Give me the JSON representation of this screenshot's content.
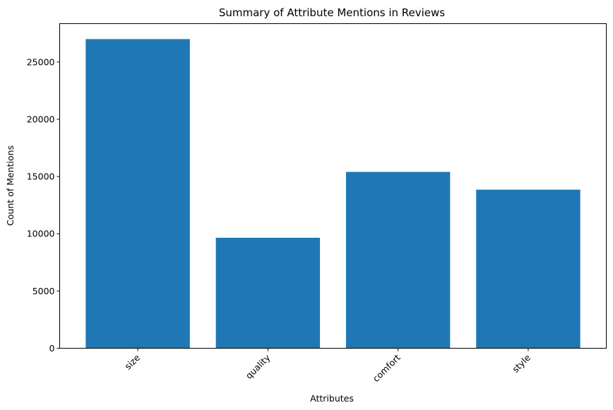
{
  "chart_data": {
    "type": "bar",
    "title": "Summary of Attribute Mentions in Reviews",
    "xlabel": "Attributes",
    "ylabel": "Count of Mentions",
    "categories": [
      "size",
      "quality",
      "comfort",
      "style"
    ],
    "values": [
      27000,
      9650,
      15400,
      13850
    ],
    "yticks": [
      0,
      5000,
      10000,
      15000,
      20000,
      25000
    ],
    "ytick_labels": [
      "0",
      "5000",
      "10000",
      "15000",
      "20000",
      "25000"
    ],
    "ylim": [
      0,
      28350
    ],
    "bar_color": "#1f77b4",
    "grid": false,
    "legend": "none",
    "xtick_rotation_deg": 45
  }
}
